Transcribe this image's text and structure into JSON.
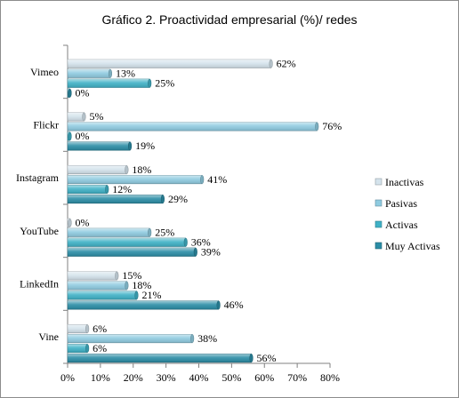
{
  "chart_data": {
    "type": "bar",
    "orientation": "horizontal",
    "title": "Gráfico 2. Proactividad empresarial (%)/ redes",
    "categories": [
      "Vimeo",
      "Flickr",
      "Instagram",
      "YouTube",
      "LinkedIn",
      "Vine"
    ],
    "series": [
      {
        "name": "Inactivas",
        "color": "#d4e3ec",
        "values": [
          62,
          5,
          18,
          0,
          15,
          6
        ]
      },
      {
        "name": "Pasivas",
        "color": "#8fcbe0",
        "values": [
          13,
          76,
          41,
          25,
          18,
          38
        ]
      },
      {
        "name": "Activas",
        "color": "#3fb1c6",
        "values": [
          25,
          0,
          12,
          36,
          21,
          6
        ]
      },
      {
        "name": "Muy Activas",
        "color": "#2b8da6",
        "values": [
          0,
          19,
          29,
          39,
          46,
          56
        ]
      }
    ],
    "value_suffix": "%",
    "xlim": [
      0,
      80
    ],
    "xticks": [
      "0%",
      "10%",
      "20%",
      "30%",
      "40%",
      "50%",
      "60%",
      "70%",
      "80%"
    ],
    "xtick_values": [
      0,
      10,
      20,
      30,
      40,
      50,
      60,
      70,
      80
    ],
    "grid": false,
    "legend": "right"
  }
}
